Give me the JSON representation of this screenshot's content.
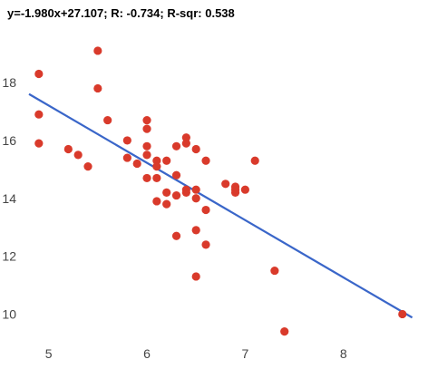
{
  "chart_data": {
    "type": "scatter",
    "title": "y=-1.980x+27.107; R: -0.734; R-sqr: 0.538",
    "xlabel": "",
    "ylabel": "",
    "xlim": [
      4.8,
      8.75
    ],
    "ylim": [
      9.2,
      19.6
    ],
    "x_ticks": [
      5,
      6,
      7,
      8
    ],
    "y_ticks": [
      10,
      12,
      14,
      16,
      18
    ],
    "grid": false,
    "legend": "none",
    "point_color": "#d93a2b",
    "line_color": "#3a66c9",
    "trendline": {
      "slope": -1.98,
      "intercept": 27.107,
      "x_range": [
        4.8,
        8.7
      ]
    },
    "points": [
      [
        4.9,
        18.3
      ],
      [
        4.9,
        16.9
      ],
      [
        4.9,
        15.9
      ],
      [
        5.2,
        15.7
      ],
      [
        5.3,
        15.5
      ],
      [
        5.4,
        15.1
      ],
      [
        5.5,
        19.1
      ],
      [
        5.5,
        17.8
      ],
      [
        5.6,
        16.7
      ],
      [
        5.8,
        16.0
      ],
      [
        5.8,
        15.4
      ],
      [
        5.9,
        15.2
      ],
      [
        6.0,
        16.7
      ],
      [
        6.0,
        16.4
      ],
      [
        6.0,
        15.8
      ],
      [
        6.0,
        15.5
      ],
      [
        6.0,
        14.7
      ],
      [
        6.1,
        15.3
      ],
      [
        6.1,
        15.1
      ],
      [
        6.1,
        14.7
      ],
      [
        6.1,
        13.9
      ],
      [
        6.2,
        15.3
      ],
      [
        6.2,
        14.2
      ],
      [
        6.2,
        13.8
      ],
      [
        6.3,
        15.8
      ],
      [
        6.3,
        14.8
      ],
      [
        6.3,
        14.1
      ],
      [
        6.3,
        12.7
      ],
      [
        6.4,
        16.1
      ],
      [
        6.4,
        15.9
      ],
      [
        6.4,
        14.3
      ],
      [
        6.4,
        14.2
      ],
      [
        6.5,
        15.7
      ],
      [
        6.5,
        14.3
      ],
      [
        6.5,
        14.0
      ],
      [
        6.5,
        12.9
      ],
      [
        6.5,
        11.3
      ],
      [
        6.6,
        15.3
      ],
      [
        6.6,
        13.6
      ],
      [
        6.6,
        12.4
      ],
      [
        6.8,
        14.5
      ],
      [
        6.9,
        14.4
      ],
      [
        6.9,
        14.3
      ],
      [
        6.9,
        14.2
      ],
      [
        7.0,
        14.3
      ],
      [
        7.1,
        15.3
      ],
      [
        7.3,
        11.5
      ],
      [
        7.4,
        9.4
      ],
      [
        8.6,
        10.0
      ]
    ]
  }
}
